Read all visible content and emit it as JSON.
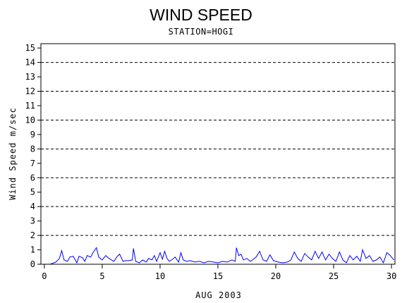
{
  "chart_data": {
    "type": "line",
    "title": "WIND SPEED",
    "subtitle": "STATION=HOGI",
    "xlabel": "AUG 2003",
    "ylabel": "Wind Speed m/sec",
    "xlim": [
      -0.3,
      30.3
    ],
    "ylim": [
      0,
      15.3
    ],
    "xticks": [
      0,
      5,
      10,
      15,
      20,
      25,
      30
    ],
    "yticks": [
      0,
      1,
      2,
      3,
      4,
      5,
      6,
      7,
      8,
      9,
      10,
      11,
      12,
      13,
      14,
      15
    ],
    "gridlines_y": [
      2,
      4,
      6,
      8,
      10,
      12,
      14
    ],
    "grid": "horizontal dashed",
    "series": [
      {
        "color": "#0000ff",
        "x": [
          0.0,
          0.5,
          1.0,
          1.3,
          1.5,
          1.7,
          2.0,
          2.2,
          2.5,
          2.8,
          3.0,
          3.3,
          3.5,
          3.7,
          4.0,
          4.2,
          4.5,
          4.7,
          5.0,
          5.3,
          5.6,
          5.8,
          6.0,
          6.3,
          6.5,
          6.8,
          7.0,
          7.3,
          7.6,
          7.7,
          7.9,
          8.2,
          8.5,
          8.8,
          9.0,
          9.3,
          9.5,
          9.7,
          10.0,
          10.2,
          10.4,
          10.6,
          10.8,
          11.0,
          11.3,
          11.6,
          11.8,
          12.0,
          12.3,
          12.6,
          13.0,
          13.4,
          13.8,
          14.2,
          14.6,
          15.0,
          15.4,
          15.8,
          16.2,
          16.5,
          16.6,
          16.8,
          17.0,
          17.2,
          17.5,
          17.8,
          18.0,
          18.3,
          18.6,
          18.9,
          19.2,
          19.5,
          19.8,
          20.2,
          20.6,
          21.0,
          21.3,
          21.6,
          21.9,
          22.2,
          22.5,
          22.8,
          23.1,
          23.4,
          23.7,
          24.0,
          24.3,
          24.6,
          24.9,
          25.2,
          25.5,
          25.8,
          26.1,
          26.4,
          26.7,
          27.0,
          27.3,
          27.5,
          27.8,
          28.1,
          28.4,
          28.7,
          29.0,
          29.3,
          29.6,
          29.9,
          30.2
        ],
        "y": [
          0.0,
          0.0,
          0.15,
          0.4,
          0.95,
          0.3,
          0.2,
          0.5,
          0.55,
          0.1,
          0.55,
          0.45,
          0.2,
          0.6,
          0.5,
          0.8,
          1.15,
          0.5,
          0.3,
          0.6,
          0.4,
          0.3,
          0.2,
          0.55,
          0.7,
          0.2,
          0.25,
          0.25,
          0.3,
          1.1,
          0.2,
          0.1,
          0.3,
          0.15,
          0.4,
          0.3,
          0.6,
          0.2,
          0.8,
          0.35,
          0.9,
          0.4,
          0.2,
          0.3,
          0.5,
          0.15,
          0.8,
          0.3,
          0.2,
          0.25,
          0.15,
          0.2,
          0.1,
          0.2,
          0.15,
          0.1,
          0.2,
          0.15,
          0.3,
          0.2,
          1.15,
          0.6,
          0.7,
          0.3,
          0.4,
          0.2,
          0.3,
          0.5,
          0.9,
          0.3,
          0.2,
          0.65,
          0.25,
          0.15,
          0.1,
          0.15,
          0.3,
          0.85,
          0.4,
          0.2,
          0.75,
          0.5,
          0.3,
          0.9,
          0.4,
          0.85,
          0.3,
          0.7,
          0.4,
          0.2,
          0.85,
          0.3,
          0.1,
          0.6,
          0.3,
          0.55,
          0.2,
          1.0,
          0.4,
          0.6,
          0.2,
          0.3,
          0.5,
          0.1,
          0.8,
          0.6,
          0.3
        ]
      }
    ]
  }
}
